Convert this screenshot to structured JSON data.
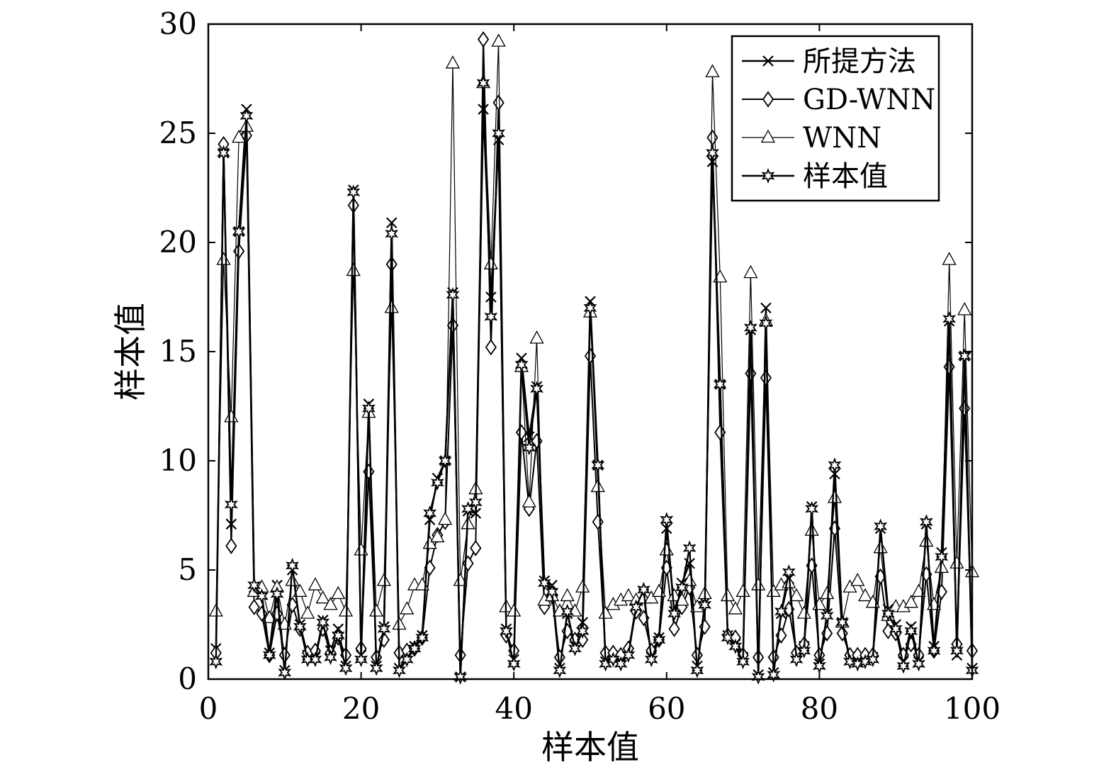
{
  "chart_data": {
    "type": "line",
    "title": "",
    "xlabel": "样本值",
    "ylabel": "样本值",
    "xlim": [
      0,
      100
    ],
    "ylim": [
      0,
      30
    ],
    "xticks": [
      0,
      20,
      40,
      60,
      80,
      100
    ],
    "yticks": [
      0,
      5,
      10,
      15,
      20,
      25,
      30
    ],
    "grid": false,
    "legend_position": "top-right",
    "x": [
      1,
      2,
      3,
      4,
      5,
      6,
      7,
      8,
      9,
      10,
      11,
      12,
      13,
      14,
      15,
      16,
      17,
      18,
      19,
      20,
      21,
      22,
      23,
      24,
      25,
      26,
      27,
      28,
      29,
      30,
      31,
      32,
      33,
      34,
      35,
      36,
      37,
      38,
      39,
      40,
      41,
      42,
      43,
      44,
      45,
      46,
      47,
      48,
      49,
      50,
      51,
      52,
      53,
      54,
      55,
      56,
      57,
      58,
      59,
      60,
      61,
      62,
      63,
      64,
      65,
      66,
      67,
      68,
      69,
      70,
      71,
      72,
      73,
      74,
      75,
      76,
      77,
      78,
      79,
      80,
      81,
      82,
      83,
      84,
      85,
      86,
      87,
      88,
      89,
      90,
      91,
      92,
      93,
      94,
      95,
      96,
      97,
      98,
      99,
      100
    ],
    "series": [
      {
        "name": "所提方法",
        "marker": "x",
        "values": [
          1.4,
          24.1,
          7.1,
          20.5,
          26.1,
          4.2,
          3.9,
          1.2,
          4.3,
          0.4,
          5.0,
          2.5,
          1.1,
          1.0,
          2.7,
          1.3,
          2.3,
          0.6,
          22.4,
          1.1,
          12.6,
          0.6,
          2.4,
          20.9,
          0.5,
          1.0,
          1.5,
          2.0,
          7.3,
          9.2,
          10.0,
          17.7,
          0.1,
          7.7,
          7.6,
          26.1,
          17.5,
          24.7,
          2.3,
          0.9,
          14.7,
          11.1,
          13.4,
          4.5,
          4.3,
          0.5,
          3.0,
          1.5,
          2.6,
          17.3,
          9.8,
          0.8,
          1.0,
          0.8,
          1.2,
          3.4,
          3.9,
          1.0,
          1.9,
          6.9,
          3.1,
          4.4,
          5.3,
          0.6,
          3.5,
          23.7,
          13.5,
          2.0,
          1.6,
          1.0,
          16.0,
          0.2,
          17.0,
          0.3,
          3.0,
          4.6,
          1.0,
          1.5,
          7.9,
          0.7,
          3.0,
          9.4,
          2.6,
          0.9,
          0.8,
          0.9,
          1.0,
          6.9,
          3.2,
          2.5,
          0.8,
          2.4,
          0.8,
          7.1,
          1.5,
          5.8,
          16.4,
          1.1,
          14.8,
          0.5
        ]
      },
      {
        "name": "GD-WNN",
        "marker": "diamond",
        "values": [
          1.2,
          24.5,
          6.1,
          19.6,
          24.9,
          3.3,
          3.0,
          1.1,
          3.0,
          1.1,
          3.4,
          2.3,
          1.2,
          1.3,
          2.3,
          1.2,
          1.9,
          1.1,
          21.7,
          1.4,
          9.5,
          1.0,
          1.8,
          19.0,
          1.2,
          1.3,
          1.4,
          1.9,
          5.1,
          6.6,
          7.2,
          16.2,
          1.1,
          5.3,
          6.0,
          29.3,
          15.2,
          26.4,
          2.0,
          1.3,
          11.3,
          7.8,
          10.9,
          3.3,
          3.8,
          1.0,
          2.2,
          1.8,
          1.8,
          14.8,
          7.2,
          1.2,
          1.2,
          1.1,
          1.4,
          3.1,
          2.8,
          1.3,
          1.8,
          5.1,
          2.3,
          3.3,
          4.2,
          1.1,
          2.4,
          24.8,
          11.3,
          2.0,
          1.9,
          1.1,
          14.0,
          1.0,
          13.8,
          1.0,
          2.0,
          3.2,
          1.2,
          1.6,
          5.2,
          1.1,
          2.1,
          6.9,
          2.1,
          1.1,
          1.1,
          1.1,
          1.1,
          4.7,
          2.2,
          2.1,
          1.1,
          1.6,
          1.1,
          4.8,
          1.3,
          4.0,
          14.3,
          1.6,
          12.4,
          1.3
        ]
      },
      {
        "name": "WNN",
        "marker": "triangle",
        "values": [
          3.1,
          19.2,
          12.0,
          24.8,
          25.3,
          4.0,
          4.2,
          2.8,
          4.2,
          2.5,
          4.5,
          4.0,
          3.0,
          4.3,
          3.7,
          3.4,
          3.9,
          3.1,
          18.7,
          5.9,
          12.2,
          3.1,
          4.5,
          17.0,
          2.5,
          3.2,
          4.3,
          4.3,
          6.2,
          6.5,
          7.3,
          28.2,
          4.5,
          7.1,
          8.7,
          27.3,
          19.0,
          29.2,
          3.3,
          3.1,
          14.3,
          8.1,
          15.6,
          3.6,
          3.8,
          3.1,
          3.8,
          3.1,
          4.2,
          16.8,
          8.8,
          3.0,
          3.4,
          3.6,
          3.8,
          3.6,
          3.7,
          3.7,
          4.0,
          5.9,
          3.8,
          3.6,
          4.5,
          3.3,
          3.9,
          27.8,
          18.4,
          3.8,
          3.2,
          4.0,
          18.6,
          4.3,
          16.4,
          4.0,
          4.3,
          4.4,
          3.8,
          3.0,
          6.8,
          3.4,
          3.9,
          8.3,
          2.6,
          4.2,
          4.5,
          3.8,
          3.5,
          6.0,
          2.9,
          3.3,
          3.3,
          3.5,
          4.0,
          6.3,
          3.4,
          5.1,
          19.2,
          5.3,
          16.9,
          4.9
        ]
      },
      {
        "name": "样本值",
        "marker": "star",
        "values": [
          0.8,
          24.1,
          8.0,
          20.5,
          25.8,
          4.3,
          3.8,
          1.1,
          3.9,
          0.3,
          5.2,
          2.4,
          0.9,
          0.9,
          2.6,
          1.0,
          2.0,
          0.5,
          22.3,
          0.9,
          12.4,
          0.5,
          2.3,
          20.4,
          0.4,
          0.9,
          1.4,
          1.9,
          7.6,
          9.0,
          10.0,
          17.6,
          0.1,
          7.8,
          8.1,
          27.3,
          16.6,
          25.0,
          2.2,
          0.7,
          14.4,
          10.6,
          13.3,
          4.4,
          4.0,
          0.4,
          3.1,
          1.4,
          2.2,
          17.0,
          9.8,
          0.7,
          0.9,
          0.7,
          1.1,
          3.3,
          4.1,
          0.9,
          1.8,
          7.3,
          3.0,
          4.2,
          6.0,
          0.4,
          3.4,
          24.1,
          13.5,
          1.9,
          1.5,
          0.8,
          16.1,
          0.1,
          16.3,
          0.2,
          3.1,
          4.9,
          0.9,
          1.3,
          7.8,
          0.6,
          2.9,
          9.8,
          2.6,
          0.8,
          0.7,
          0.8,
          0.9,
          7.0,
          3.0,
          2.3,
          0.6,
          2.2,
          0.7,
          7.2,
          1.3,
          5.6,
          16.5,
          1.3,
          14.8,
          0.4
        ]
      }
    ],
    "legend": [
      {
        "label": "所提方法"
      },
      {
        "label": "GD-WNN"
      },
      {
        "label": "WNN"
      },
      {
        "label": "样本值"
      }
    ]
  }
}
